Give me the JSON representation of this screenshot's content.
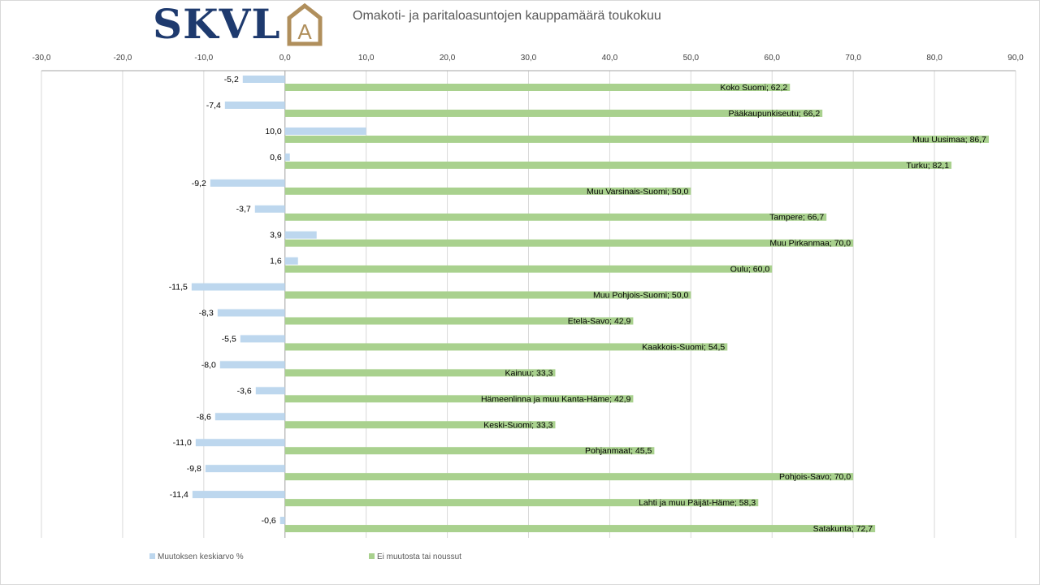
{
  "header": {
    "logo_text": "SKVL",
    "logo_mark_letter": "A",
    "title": "Omakoti- ja paritaloasuntojen kauppamäärä toukokuu"
  },
  "colors": {
    "series_change": "#bdd7ee",
    "series_noChange": "#a9d18e",
    "logo_blue": "#1e3a6e",
    "logo_gold": "#b08f5c"
  },
  "chart_data": {
    "type": "bar",
    "orientation": "horizontal",
    "xlim": [
      -30,
      90
    ],
    "xticks": [
      "-30,0",
      "-20,0",
      "-10,0",
      "0,0",
      "10,0",
      "20,0",
      "30,0",
      "40,0",
      "50,0",
      "60,0",
      "70,0",
      "80,0",
      "90,0"
    ],
    "grid": true,
    "legend_position": "bottom",
    "series": [
      {
        "name": "Muutoksen keskiarvo %",
        "values": [
          -5.2,
          -7.4,
          10.0,
          0.6,
          -9.2,
          -3.7,
          3.9,
          1.6,
          -11.5,
          -8.3,
          -5.5,
          -8.0,
          -3.6,
          -8.6,
          -11.0,
          -9.8,
          -11.4,
          -0.6
        ],
        "labels": [
          "-5,2",
          "-7,4",
          "10,0",
          "0,6",
          "-9,2",
          "-3,7",
          "3,9",
          "1,6",
          "-11,5",
          "-8,3",
          "-5,5",
          "-8,0",
          "-3,6",
          "-8,6",
          "-11,0",
          "-9,8",
          "-11,4",
          "-0,6"
        ]
      },
      {
        "name": "Ei muutosta tai noussut",
        "values": [
          62.2,
          66.2,
          86.7,
          82.1,
          50.0,
          66.7,
          70.0,
          60.0,
          50.0,
          42.9,
          54.5,
          33.3,
          42.9,
          33.3,
          45.5,
          70.0,
          58.3,
          72.7
        ],
        "labels": [
          "Koko Suomi;  62,2",
          "Pääkaupunkiseutu; 66,2",
          "Muu Uusimaa; 86,7",
          "Turku;  82,1",
          "Muu Varsinais-Suomi; 50,0",
          "Tampere;  66,7",
          "Muu Pirkanmaa; 70,0",
          "Oulu; 60,0",
          "Muu Pohjois-Suomi; 50,0",
          "Etelä-Savo; 42,9",
          "Kaakkois-Suomi; 54,5",
          "Kainuu; 33,3",
          "Hämeenlinna ja muu Kanta-Häme; 42,9",
          "Keski-Suomi; 33,3",
          "Pohjanmaat; 45,5",
          "Pohjois-Savo; 70,0",
          "Lahti ja muu Päijät-Häme; 58,3",
          "Satakunta; 72,7"
        ]
      }
    ]
  }
}
